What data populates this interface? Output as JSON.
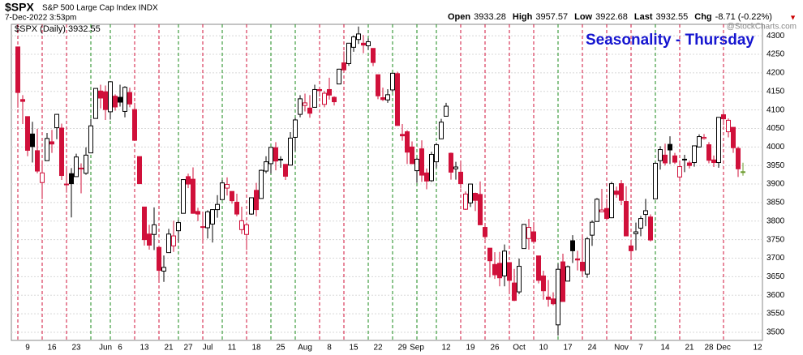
{
  "header": {
    "symbol": "$SPX",
    "name": "S&P 500 Large Cap Index INDX",
    "date": "7-Dec-2022 3:53pm",
    "quote": [
      {
        "label": "Open",
        "value": 3933.28
      },
      {
        "label": "High",
        "value": 3957.57
      },
      {
        "label": "Low",
        "value": 3922.68
      },
      {
        "label": "Last",
        "value": 3932.55
      },
      {
        "label": "Chg",
        "value": "-8.71 (-0.22%)"
      }
    ],
    "arrow": "▼",
    "watermark": "@StockCharts.com"
  },
  "chart_data": {
    "type": "candlestick",
    "title": "Seasonality - Thursday",
    "legend": "$SPX (Daily) 3932.55",
    "categories": [
      null,
      null,
      "9",
      null,
      null,
      null,
      null,
      "16",
      null,
      null,
      null,
      null,
      "23",
      null,
      null,
      null,
      null,
      null,
      "Jun",
      null,
      null,
      "6",
      null,
      null,
      null,
      null,
      "13",
      null,
      null,
      null,
      null,
      "21",
      null,
      null,
      null,
      "27",
      null,
      null,
      null,
      "Jul",
      null,
      null,
      null,
      null,
      "11",
      null,
      null,
      null,
      null,
      "18",
      null,
      null,
      null,
      null,
      "25",
      null,
      null,
      null,
      null,
      "Aug",
      null,
      null,
      null,
      null,
      "8",
      null,
      null,
      null,
      null,
      "15",
      null,
      null,
      null,
      null,
      "22",
      null,
      null,
      null,
      null,
      "29",
      null,
      null,
      "Sep",
      null,
      null,
      null,
      null,
      null,
      "12",
      null,
      null,
      null,
      null,
      "19",
      null,
      null,
      null,
      null,
      "26",
      null,
      null,
      null,
      null,
      "Oct",
      null,
      null,
      null,
      null,
      "10",
      null,
      null,
      null,
      null,
      "17",
      null,
      null,
      null,
      null,
      "24",
      null,
      null,
      null,
      null,
      null,
      "Nov",
      null,
      null,
      null,
      "7",
      null,
      null,
      null,
      null,
      "14",
      null,
      null,
      null,
      null,
      "21",
      null,
      null,
      null,
      "28",
      null,
      null,
      "Dec",
      null,
      null,
      null,
      null,
      null,
      null,
      "12"
    ],
    "open": [
      4270,
      4128,
      4082,
      4035,
      3990,
      3904,
      3963,
      4014,
      4052,
      4051,
      3899,
      3928,
      3920,
      3943,
      3929,
      3984,
      4077,
      4151,
      4149,
      4095,
      4137,
      4134,
      4096,
      4147,
      4101,
      3974,
      3838,
      3765,
      3764,
      3729,
      3665,
      3715,
      3733,
      3774,
      3821,
      3920,
      3913,
      3826,
      3785,
      3782,
      3792,
      3831,
      3858,
      3889,
      3880,
      3851,
      3777,
      3764,
      3819,
      3883,
      3861,
      3935,
      3955,
      3998,
      3965,
      3953,
      3951,
      4026,
      4088,
      4112,
      4105,
      4107,
      4155,
      4115,
      4155,
      4134,
      4170,
      4227,
      4225,
      4269,
      4290,
      4280,
      4273,
      4266,
      4195,
      4133,
      4127,
      4154,
      4198,
      4034,
      4041,
      4000,
      3936,
      3995,
      3930,
      3909,
      3960,
      4022,
      4083,
      3983,
      3941,
      3932,
      3832,
      3849,
      3875,
      3872,
      3783,
      3727,
      3683,
      3686,
      3652,
      3688,
      3633,
      3609,
      3726,
      3753,
      3771,
      3706,
      3652,
      3595,
      3590,
      3520,
      3690,
      3638,
      3747,
      3698,
      3689,
      3657,
      3762,
      3799,
      3825,
      3834,
      3809,
      3881,
      3901,
      3853,
      3733,
      3766,
      3781,
      3818,
      3811,
      3860,
      3963,
      3978,
      4007,
      3976,
      3919,
      3967,
      3957,
      3958,
      4000,
      4023,
      4006,
      3965,
      3958,
      4087,
      4041,
      4053,
      3996,
      3933.28,
      null,
      null,
      null
    ],
    "high": [
      4270,
      4140,
      4082,
      4068,
      4049,
      3964,
      4038,
      4046,
      4089,
      4063,
      3946,
      3943,
      3982,
      3956,
      3999,
      4076,
      4158,
      4168,
      4166,
      4177,
      4142,
      4168,
      4164,
      4160,
      4119,
      3974,
      3838,
      3790,
      3837,
      3729,
      3707,
      3779,
      3801,
      3802,
      3913,
      3928,
      3945,
      3836,
      3818,
      3829,
      3832,
      3870,
      3911,
      3918,
      3880,
      3874,
      3839,
      3796,
      3863,
      3903,
      3939,
      3975,
      3999,
      4013,
      3975,
      3954,
      4040,
      4079,
      4140,
      4144,
      4140,
      4168,
      4161,
      4151,
      4187,
      4137,
      4211,
      4258,
      4280,
      4301,
      4325,
      4302,
      4293,
      4266,
      4195,
      4160,
      4156,
      4200,
      4203,
      4062,
      4045,
      4015,
      3971,
      4018,
      3942,
      3987,
      4011,
      4076,
      4119,
      3985,
      3960,
      3959,
      3880,
      3900,
      3877,
      3907,
      3790,
      3727,
      3716,
      3717,
      3737,
      3688,
      3671,
      3699,
      3792,
      3806,
      3797,
      3706,
      3666,
      3641,
      3608,
      3685,
      3712,
      3680,
      3762,
      3720,
      3763,
      3757,
      3802,
      3862,
      3887,
      3860,
      3906,
      3893,
      3911,
      3894,
      3750,
      3796,
      3814,
      3860,
      3818,
      3959,
      4002,
      4009,
      4029,
      3984,
      3955,
      3979,
      3963,
      4003,
      4034,
      4035,
      4013,
      3977,
      4080,
      4101,
      4077,
      4053,
      4001,
      3957.57,
      null,
      null,
      null
    ],
    "low": [
      4106,
      4062,
      3975,
      3958,
      3929,
      3859,
      3963,
      3984,
      4021,
      3911,
      3877,
      3810,
      3920,
      3875,
      3925,
      3984,
      4077,
      4104,
      4073,
      4074,
      4098,
      4109,
      4080,
      4107,
      4017,
      3900,
      3734,
      3723,
      3722,
      3640,
      3636,
      3715,
      3717,
      3744,
      3821,
      3889,
      3820,
      3800,
      3739,
      3753,
      3742,
      3809,
      3858,
      3869,
      3847,
      3813,
      3765,
      3722,
      3817,
      3813,
      3861,
      3929,
      3928,
      3937,
      3944,
      3911,
      3951,
      3989,
      4080,
      4096,
      4079,
      4107,
      4136,
      4107,
      4128,
      4112,
      4170,
      4201,
      4219,
      4257,
      4278,
      4253,
      4262,
      4218,
      4129,
      4124,
      4119,
      4148,
      4057,
      4017,
      3954,
      3954,
      3903,
      3906,
      3886,
      3906,
      3944,
      4022,
      4083,
      3912,
      3912,
      3888,
      3830,
      3838,
      3827,
      3789,
      3750,
      3648,
      3644,
      3624,
      3624,
      3611,
      3584,
      3603,
      3726,
      3723,
      3739,
      3632,
      3588,
      3569,
      3573,
      3491,
      3584,
      3638,
      3687,
      3667,
      3657,
      3647,
      3733,
      3799,
      3824,
      3803,
      3808,
      3863,
      3843,
      3759,
      3698,
      3721,
      3759,
      3786,
      3745,
      3860,
      3939,
      3950,
      3954,
      3954,
      3907,
      3932,
      3942,
      3947,
      3999,
      4020,
      3956,
      3946,
      3944,
      4059,
      4026,
      3984,
      3919,
      3922.68,
      null,
      null,
      null
    ],
    "close": [
      4147,
      4123,
      3991,
      4001,
      3935,
      3930,
      4023,
      4008,
      4088,
      3923,
      3900,
      3901,
      3973,
      3941,
      3978,
      4057,
      4158,
      4132,
      4101,
      4176,
      4108,
      4121,
      4161,
      4116,
      4018,
      3901,
      3750,
      3735,
      3790,
      3667,
      3675,
      3765,
      3760,
      3796,
      3912,
      3900,
      3821,
      3819,
      3785,
      3825,
      3831,
      3845,
      3903,
      3899,
      3855,
      3819,
      3801,
      3790,
      3863,
      3831,
      3937,
      3960,
      3999,
      3962,
      3967,
      3921,
      4024,
      4073,
      4130,
      4119,
      4091,
      4155,
      4152,
      4145,
      4140,
      4122,
      4210,
      4208,
      4280,
      4297,
      4305,
      4275,
      4284,
      4228,
      4138,
      4128,
      4141,
      4199,
      4058,
      4030,
      3986,
      3955,
      3967,
      3924,
      3908,
      3980,
      4006,
      4067,
      4110,
      3932,
      3946,
      3901,
      3873,
      3900,
      3856,
      3790,
      3758,
      3693,
      3655,
      3647,
      3719,
      3640,
      3586,
      3678,
      3791,
      3783,
      3745,
      3640,
      3612,
      3589,
      3577,
      3670,
      3583,
      3677,
      3720,
      3695,
      3666,
      3752,
      3797,
      3859,
      3830,
      3807,
      3901,
      3872,
      3856,
      3760,
      3720,
      3771,
      3807,
      3828,
      3749,
      3956,
      3993,
      3957,
      3992,
      3959,
      3947,
      3965,
      3950,
      4003,
      4028,
      4026,
      3964,
      3958,
      4080,
      4076,
      4072,
      3998,
      3941,
      3932.55,
      null,
      null,
      null
    ],
    "up_color": "#1a8a1a",
    "down_color": "#d0103a",
    "body_color": "#000000",
    "today_color": "#6a9a2a",
    "ylim": [
      3478,
      4331
    ],
    "yticks": [
      3500,
      3550,
      3600,
      3650,
      3700,
      3750,
      3800,
      3850,
      3900,
      3950,
      4000,
      4050,
      4100,
      4150,
      4200,
      4250,
      4300
    ],
    "grid": true
  }
}
